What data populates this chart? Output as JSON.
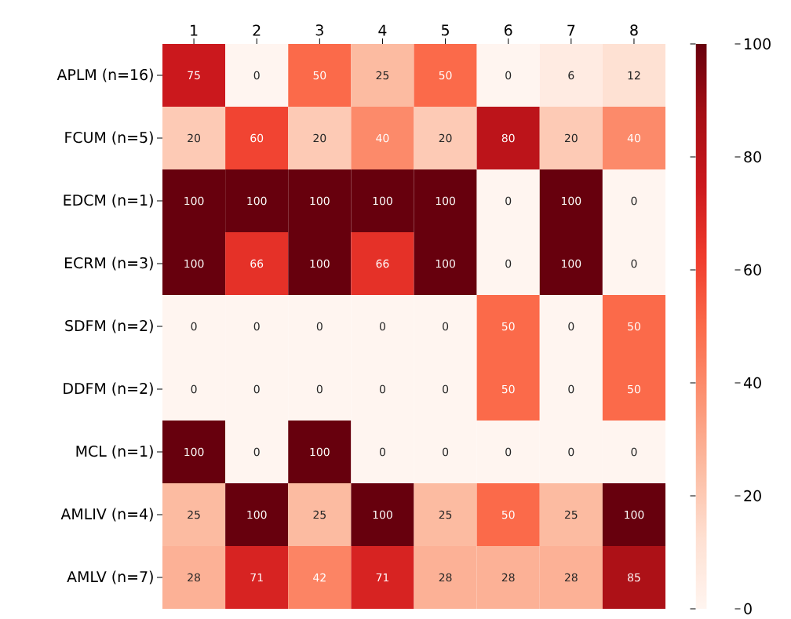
{
  "chart_data": {
    "type": "heatmap",
    "categories": [
      "1",
      "2",
      "3",
      "4",
      "5",
      "6",
      "7",
      "8"
    ],
    "y_categories": [
      "APLM (n=16)",
      "FCUM (n=5)",
      "EDCM (n=1)",
      "ECRM (n=3)",
      "SDFM (n=2)",
      "DDFM (n=2)",
      "MCL (n=1)",
      "AMLIV (n=4)",
      "AMLV (n=7)"
    ],
    "cells": [
      [
        75,
        0,
        50,
        25,
        50,
        0,
        6,
        12
      ],
      [
        20,
        60,
        20,
        40,
        20,
        80,
        20,
        40
      ],
      [
        100,
        100,
        100,
        100,
        100,
        0,
        100,
        0
      ],
      [
        100,
        66,
        100,
        66,
        100,
        0,
        100,
        0
      ],
      [
        0,
        0,
        0,
        0,
        0,
        50,
        0,
        50
      ],
      [
        0,
        0,
        0,
        0,
        0,
        50,
        0,
        50
      ],
      [
        100,
        0,
        100,
        0,
        0,
        0,
        0,
        0
      ],
      [
        25,
        100,
        25,
        100,
        25,
        50,
        25,
        100
      ],
      [
        28,
        71,
        42,
        71,
        28,
        28,
        28,
        85
      ]
    ],
    "clim": [
      0,
      100
    ],
    "cticks": [
      0,
      20,
      40,
      60,
      80,
      100
    ],
    "data_labels": true
  }
}
